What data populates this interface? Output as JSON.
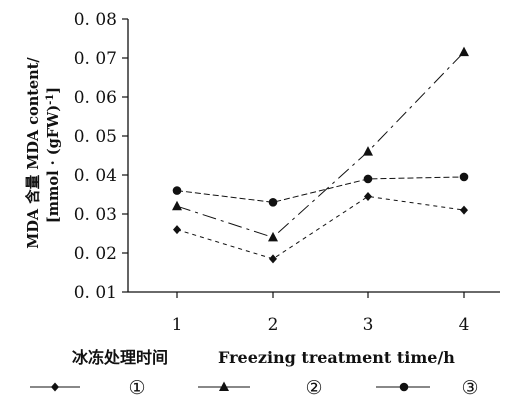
{
  "chart_data": {
    "type": "line",
    "ylabel_line1": "MDA 含量 MDA content/",
    "ylabel_line2": "[mmol · (gFW)",
    "ylabel_sup": "-1",
    "ylabel_end": "]",
    "xlabel_cn": "冰冻处理时间",
    "xlabel_en": "Freezing treatment time/h",
    "x": [
      1,
      2,
      3,
      4
    ],
    "xticks": [
      "1",
      "2",
      "3",
      "4"
    ],
    "ylim": [
      0.01,
      0.08
    ],
    "yticks": [
      "0. 01",
      "0. 02",
      "0. 03",
      "0. 04",
      "0. 05",
      "0. 06",
      "0. 07",
      "0. 08"
    ],
    "series": [
      {
        "name": "①",
        "marker": "diamond",
        "dash": "4,4",
        "values": [
          0.026,
          0.0185,
          0.0345,
          0.031
        ]
      },
      {
        "name": "②",
        "marker": "triangle",
        "dash": "14,5,3,5",
        "values": [
          0.032,
          0.024,
          0.046,
          0.0715
        ]
      },
      {
        "name": "③",
        "marker": "circle",
        "dash": "6,3",
        "values": [
          0.036,
          0.033,
          0.039,
          0.0395
        ]
      }
    ],
    "legend_position": "bottom",
    "grid": false,
    "color": "#111111"
  }
}
